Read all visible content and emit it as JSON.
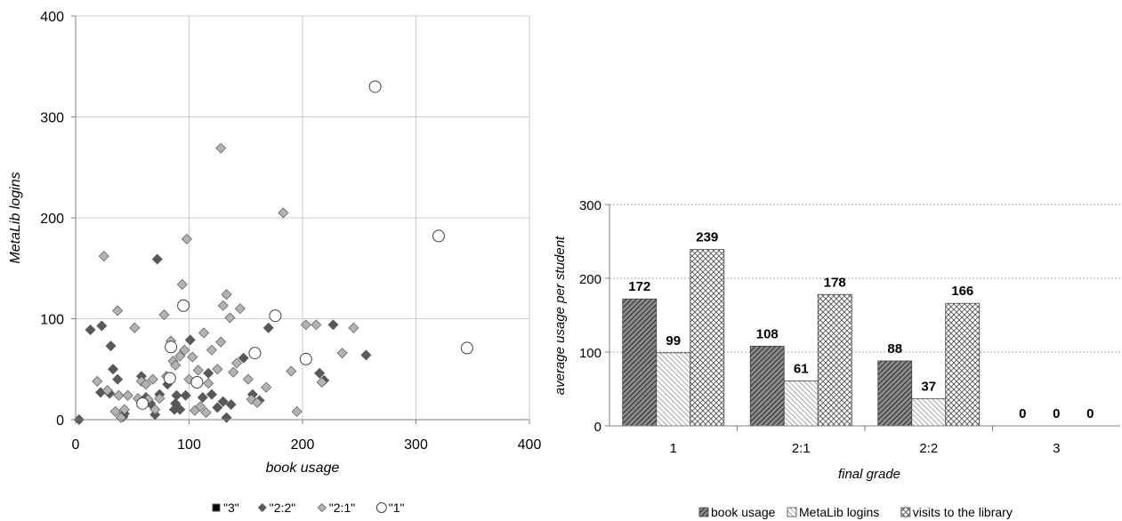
{
  "chart_data": [
    {
      "type": "scatter",
      "title": "",
      "xlabel": "book usage",
      "ylabel": "MetaLib logins",
      "xlim": [
        0,
        400
      ],
      "ylim": [
        0,
        400
      ],
      "xticks": [
        "0",
        "100",
        "200",
        "300",
        "400"
      ],
      "yticks": [
        "0",
        "100",
        "200",
        "300",
        "400"
      ],
      "grid": true,
      "legend": "bottom",
      "series": [
        {
          "name": "\"3\"",
          "marker": "square",
          "color": "#000000",
          "points": []
        },
        {
          "name": "\"2:2\"",
          "marker": "diamond",
          "color": "#595959",
          "points": [
            [
              3,
              0
            ],
            [
              13,
              89
            ],
            [
              23,
              93
            ],
            [
              22,
              27
            ],
            [
              30,
              26
            ],
            [
              31,
              73
            ],
            [
              33,
              50
            ],
            [
              37,
              40
            ],
            [
              43,
              6
            ],
            [
              42,
              3
            ],
            [
              58,
              43
            ],
            [
              62,
              22
            ],
            [
              66,
              16
            ],
            [
              70,
              5
            ],
            [
              72,
              159
            ],
            [
              74,
              25
            ],
            [
              81,
              35
            ],
            [
              87,
              10
            ],
            [
              88,
              16
            ],
            [
              89,
              24
            ],
            [
              92,
              10
            ],
            [
              97,
              24
            ],
            [
              101,
              79
            ],
            [
              112,
              22
            ],
            [
              117,
              46
            ],
            [
              120,
              25
            ],
            [
              125,
              12
            ],
            [
              130,
              18
            ],
            [
              133,
              2
            ],
            [
              137,
              15
            ],
            [
              148,
              61
            ],
            [
              156,
              25
            ],
            [
              162,
              19
            ],
            [
              170,
              91
            ],
            [
              215,
              46
            ],
            [
              219,
              39
            ],
            [
              227,
              94
            ],
            [
              256,
              64
            ]
          ]
        },
        {
          "name": "\"2:1\"",
          "marker": "diamond",
          "color": "#b3b3b3",
          "points": [
            [
              19,
              38
            ],
            [
              25,
              162
            ],
            [
              28,
              29
            ],
            [
              35,
              8
            ],
            [
              37,
              108
            ],
            [
              38,
              24
            ],
            [
              40,
              2
            ],
            [
              43,
              10
            ],
            [
              46,
              24
            ],
            [
              52,
              91
            ],
            [
              55,
              21
            ],
            [
              58,
              38
            ],
            [
              62,
              35
            ],
            [
              64,
              20
            ],
            [
              68,
              40
            ],
            [
              70,
              10
            ],
            [
              74,
              21
            ],
            [
              78,
              104
            ],
            [
              80,
              43
            ],
            [
              84,
              78
            ],
            [
              86,
              58
            ],
            [
              88,
              54
            ],
            [
              92,
              63
            ],
            [
              94,
              134
            ],
            [
              96,
              69
            ],
            [
              98,
              179
            ],
            [
              100,
              40
            ],
            [
              103,
              62
            ],
            [
              105,
              9
            ],
            [
              108,
              49
            ],
            [
              110,
              13
            ],
            [
              113,
              86
            ],
            [
              115,
              7
            ],
            [
              117,
              36
            ],
            [
              120,
              69
            ],
            [
              125,
              50
            ],
            [
              128,
              77
            ],
            [
              130,
              113
            ],
            [
              133,
              124
            ],
            [
              136,
              101
            ],
            [
              139,
              47
            ],
            [
              142,
              56
            ],
            [
              145,
              110
            ],
            [
              152,
              40
            ],
            [
              155,
              20
            ],
            [
              160,
              17
            ],
            [
              168,
              32
            ],
            [
              183,
              205
            ],
            [
              190,
              48
            ],
            [
              195,
              8
            ],
            [
              203,
              94
            ],
            [
              212,
              94
            ],
            [
              217,
              37
            ],
            [
              235,
              66
            ],
            [
              245,
              91
            ],
            [
              128,
              269
            ]
          ]
        },
        {
          "name": "\"1\"",
          "marker": "circle",
          "color": "#ffffff",
          "points": [
            [
              59,
              16
            ],
            [
              83,
              41
            ],
            [
              84,
              72
            ],
            [
              95,
              113
            ],
            [
              107,
              37
            ],
            [
              158,
              66
            ],
            [
              176,
              103
            ],
            [
              203,
              60
            ],
            [
              264,
              330
            ],
            [
              320,
              182
            ],
            [
              345,
              71
            ]
          ]
        }
      ]
    },
    {
      "type": "bar",
      "title": "",
      "xlabel": "final grade",
      "ylabel": "average usage per student",
      "ylim": [
        0,
        300
      ],
      "yticks": [
        "0",
        "100",
        "200",
        "300"
      ],
      "categories": [
        "1",
        "2:1",
        "2:2",
        "3"
      ],
      "grid": true,
      "legend": "bottom",
      "series": [
        {
          "name": "book usage",
          "pattern": "dark-hatch",
          "values": [
            172,
            108,
            88,
            0
          ]
        },
        {
          "name": "MetaLib logins",
          "pattern": "light-hatch",
          "values": [
            99,
            61,
            37,
            0
          ]
        },
        {
          "name": "visits to the library",
          "pattern": "crosshatch",
          "values": [
            239,
            178,
            166,
            0
          ]
        }
      ]
    }
  ]
}
